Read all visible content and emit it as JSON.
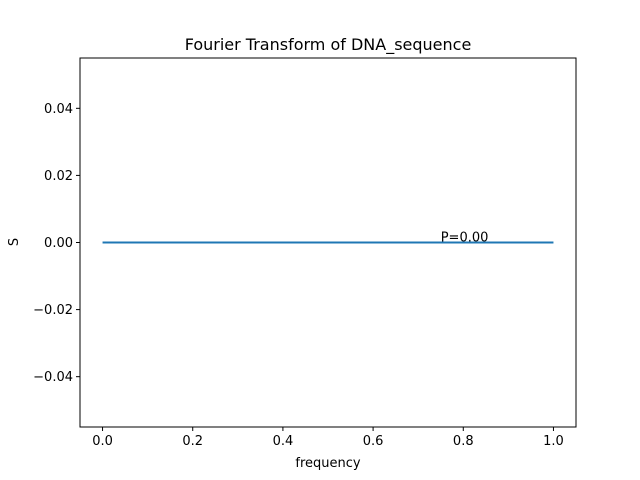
{
  "chart_data": {
    "type": "line",
    "title": "Fourier Transform of DNA_sequence",
    "xlabel": "frequency",
    "ylabel": "S",
    "xlim": [
      -0.05,
      1.05
    ],
    "ylim": [
      -0.055,
      0.055
    ],
    "x_ticks": [
      0.0,
      0.2,
      0.4,
      0.6,
      0.8,
      1.0
    ],
    "x_tick_labels": [
      "0.0",
      "0.2",
      "0.4",
      "0.6",
      "0.8",
      "1.0"
    ],
    "y_ticks": [
      -0.04,
      -0.02,
      0.0,
      0.02,
      0.04
    ],
    "y_tick_labels": [
      "−0.04",
      "−0.02",
      "0.00",
      "0.02",
      "0.04"
    ],
    "grid": false,
    "series": [
      {
        "x": [
          0.0,
          0.1,
          0.2,
          0.3,
          0.4,
          0.5,
          0.6,
          0.7,
          0.8,
          0.9,
          1.0
        ],
        "y": [
          0,
          0,
          0,
          0,
          0,
          0,
          0,
          0,
          0,
          0,
          0
        ],
        "color": "#1f77b4"
      }
    ],
    "annotation": {
      "text": "P=0.00",
      "x": 0.75,
      "y": 0.0
    }
  }
}
